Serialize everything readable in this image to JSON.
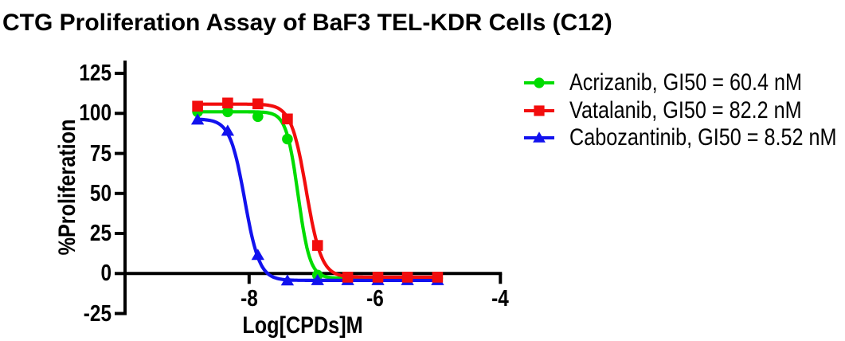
{
  "title": "CTG Proliferation Assay of BaF3 TEL-KDR Cells (C12)",
  "chart_data": {
    "type": "scatter",
    "subtype": "dose-response-curves-4PL-fit",
    "title": "CTG Proliferation Assay of BaF3 TEL-KDR Cells (C12)",
    "xlabel": "Log[CPDs]M",
    "ylabel": "%Proliferation",
    "xlim": [
      -10,
      -4
    ],
    "ylim": [
      -25,
      133
    ],
    "x_ticks": [
      -8,
      -6,
      -4
    ],
    "y_ticks": [
      125,
      100,
      75,
      50,
      25,
      0,
      -25
    ],
    "grid": false,
    "legend_position": "right",
    "axis_color": "#000000",
    "background_color": "#ffffff",
    "x": [
      -8.82,
      -8.34,
      -7.86,
      -7.39,
      -6.91,
      -6.43,
      -5.95,
      -5.48,
      -5.0
    ],
    "series": [
      {
        "name": "Acrizanib",
        "legend_label": "Acrizanib, GI50 = 60.4 nM",
        "gi50_nM": 60.4,
        "color": "#00DC00",
        "marker": "circle",
        "values": [
          101,
          101,
          98,
          84,
          -1,
          -3,
          -3,
          -3,
          -3
        ],
        "fit_4pl": {
          "top": 101,
          "bottom": -3,
          "log_gi50": -7.22,
          "hill": 4.6
        }
      },
      {
        "name": "Vatalanib",
        "legend_label": "Vatalanib, GI50 = 82.2 nM",
        "gi50_nM": 82.2,
        "color": "#F20D0D",
        "marker": "square",
        "values": [
          104.5,
          106.5,
          106,
          96.5,
          17.5,
          -2.3,
          -2.3,
          -2.3,
          -2.3
        ],
        "fit_4pl": {
          "top": 105.8,
          "bottom": -2.3,
          "log_gi50": -7.09,
          "hill": 3.6
        }
      },
      {
        "name": "Cabozantinib",
        "legend_label": "Cabozantinib, GI50 = 8.52 nM",
        "gi50_nM": 8.52,
        "color": "#1212EE",
        "marker": "triangle",
        "values": [
          96,
          89,
          11.5,
          -4.5,
          -4.3,
          -4.3,
          -4.3,
          -4.3,
          -4.3
        ],
        "fit_4pl": {
          "top": 96.5,
          "bottom": -4.3,
          "log_gi50": -8.07,
          "hill": 3.7
        }
      }
    ],
    "draw_order": [
      "Acrizanib",
      "Cabozantinib",
      "Vatalanib"
    ]
  }
}
